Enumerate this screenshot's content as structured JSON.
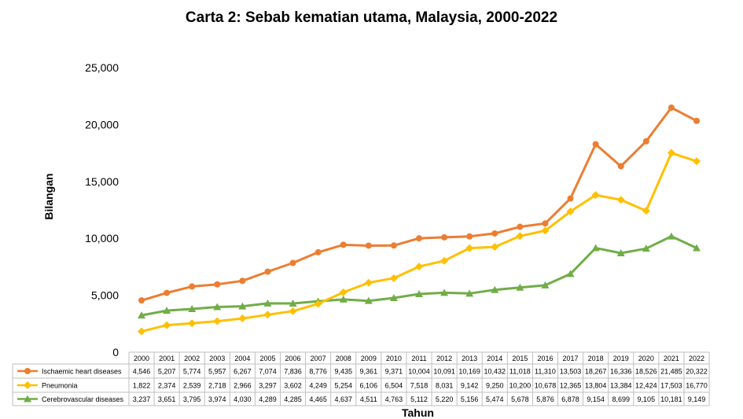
{
  "chart_data": {
    "type": "line",
    "title": "Carta 2: Sebab kematian utama, Malaysia, 2000-2022",
    "ylabel": "Bilangan",
    "xlabel": "Tahun",
    "ylim": [
      0,
      25000
    ],
    "yticks": [
      0,
      5000,
      10000,
      15000,
      20000,
      25000
    ],
    "ytick_labels": [
      "0",
      "5,000",
      "10,000",
      "15,000",
      "20,000",
      "25,000"
    ],
    "categories": [
      "2000",
      "2001",
      "2002",
      "2003",
      "2004",
      "2005",
      "2006",
      "2007",
      "2008",
      "2009",
      "2010",
      "2011",
      "2012",
      "2013",
      "2014",
      "2015",
      "2016",
      "2017",
      "2018",
      "2019",
      "2020",
      "2021",
      "2022"
    ],
    "legend_position": "bottom-data-table",
    "series": [
      {
        "name": "Ischaemic heart diseases",
        "color": "#ED7D31",
        "marker": "circle",
        "values": [
          4546,
          5207,
          5774,
          5957,
          6267,
          7074,
          7836,
          8776,
          9435,
          9361,
          9371,
          10004,
          10091,
          10169,
          10432,
          11018,
          11310,
          13503,
          18267,
          16336,
          18526,
          21485,
          20322
        ],
        "labels": [
          "4,546",
          "5,207",
          "5,774",
          "5,957",
          "6,267",
          "7,074",
          "7,836",
          "8,776",
          "9,435",
          "9,361",
          "9,371",
          "10,004",
          "10,091",
          "10,169",
          "10,432",
          "11,018",
          "11,310",
          "13,503",
          "18,267",
          "16,336",
          "18,526",
          "21,485",
          "20,322"
        ]
      },
      {
        "name": "Pneumonia",
        "color": "#FFC000",
        "marker": "diamond",
        "values": [
          1822,
          2374,
          2539,
          2718,
          2966,
          3297,
          3602,
          4249,
          5254,
          6106,
          6504,
          7518,
          8031,
          9142,
          9250,
          10200,
          10678,
          12365,
          13804,
          13384,
          12424,
          17503,
          16770
        ],
        "labels": [
          "1,822",
          "2,374",
          "2,539",
          "2,718",
          "2,966",
          "3,297",
          "3,602",
          "4,249",
          "5,254",
          "6,106",
          "6,504",
          "7,518",
          "8,031",
          "9,142",
          "9,250",
          "10,200",
          "10,678",
          "12,365",
          "13,804",
          "13,384",
          "12,424",
          "17,503",
          "16,770"
        ]
      },
      {
        "name": "Cerebrovascular diseases",
        "color": "#70AD47",
        "marker": "triangle",
        "values": [
          3237,
          3651,
          3795,
          3974,
          4030,
          4289,
          4285,
          4465,
          4637,
          4511,
          4763,
          5112,
          5220,
          5156,
          5474,
          5678,
          5876,
          6878,
          9154,
          8699,
          9105,
          10181,
          9149
        ],
        "labels": [
          "3,237",
          "3,651",
          "3,795",
          "3,974",
          "4,030",
          "4,289",
          "4,285",
          "4,465",
          "4,637",
          "4,511",
          "4,763",
          "5,112",
          "5,220",
          "5,156",
          "5,474",
          "5,678",
          "5,876",
          "6,878",
          "9,154",
          "8,699",
          "9,105",
          "10,181",
          "9,149"
        ]
      }
    ]
  }
}
